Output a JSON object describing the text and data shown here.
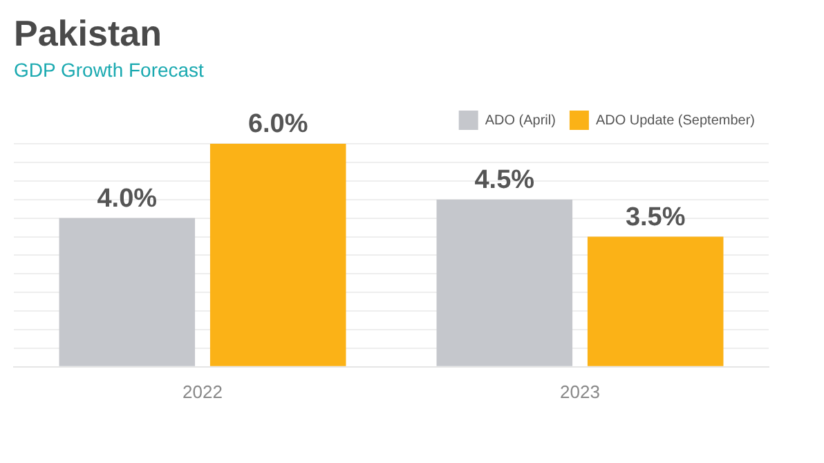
{
  "chart_data": {
    "type": "bar",
    "title": "Pakistan",
    "subtitle": "GDP Growth Forecast",
    "categories": [
      "2022",
      "2023"
    ],
    "series": [
      {
        "name": "ADO (April)",
        "color": "#c5c7cc",
        "values": [
          4.0,
          4.5
        ],
        "value_labels": [
          "4.0%",
          "4.5%"
        ]
      },
      {
        "name": "ADO Update (September)",
        "color": "#fbb217",
        "values": [
          6.0,
          3.5
        ],
        "value_labels": [
          "6.0%",
          "3.5%"
        ]
      }
    ],
    "ylim": [
      0,
      6
    ],
    "yticks": [
      {
        "value": 0,
        "label": null
      },
      {
        "value": 0.5,
        "label": null
      },
      {
        "value": 1,
        "label": null
      },
      {
        "value": 1.5,
        "label": null
      },
      {
        "value": 2,
        "label": null
      },
      {
        "value": 2.5,
        "label": null
      },
      {
        "value": 3,
        "label": null
      },
      {
        "value": 3.5,
        "label": null
      },
      {
        "value": 4,
        "label": null
      },
      {
        "value": 4.5,
        "label": null
      },
      {
        "value": 5,
        "label": null
      },
      {
        "value": 5.5,
        "label": null
      },
      {
        "value": 6,
        "label": null
      }
    ],
    "grid": "y",
    "legend": "top right",
    "tick_labels": "x"
  }
}
